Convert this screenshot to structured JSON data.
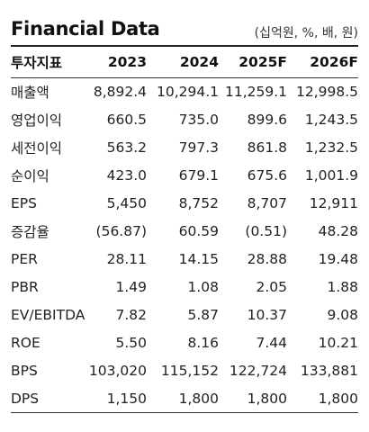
{
  "title": "Financial Data",
  "unit": "(십억원, %, 배, 원)",
  "columns": [
    "투자지표",
    "2023",
    "2024",
    "2025F",
    "2026F"
  ],
  "rows": [
    {
      "label": "매출액",
      "values": [
        "8,892.4",
        "10,294.1",
        "11,259.1",
        "12,998.5"
      ]
    },
    {
      "label": "영업이익",
      "values": [
        "660.5",
        "735.0",
        "899.6",
        "1,243.5"
      ]
    },
    {
      "label": "세전이익",
      "values": [
        "563.2",
        "797.3",
        "861.8",
        "1,232.5"
      ]
    },
    {
      "label": "순이익",
      "values": [
        "423.0",
        "679.1",
        "675.6",
        "1,001.9"
      ]
    },
    {
      "label": "EPS",
      "values": [
        "5,450",
        "8,752",
        "8,707",
        "12,911"
      ]
    },
    {
      "label": "증감율",
      "values": [
        "(56.87)",
        "60.59",
        "(0.51)",
        "48.28"
      ]
    },
    {
      "label": "PER",
      "values": [
        "28.11",
        "14.15",
        "28.88",
        "19.48"
      ]
    },
    {
      "label": "PBR",
      "values": [
        "1.49",
        "1.08",
        "2.05",
        "1.88"
      ]
    },
    {
      "label": "EV/EBITDA",
      "values": [
        "7.82",
        "5.87",
        "10.37",
        "9.08"
      ]
    },
    {
      "label": "ROE",
      "values": [
        "5.50",
        "8.16",
        "7.44",
        "10.21"
      ]
    },
    {
      "label": "BPS",
      "values": [
        "103,020",
        "115,152",
        "122,724",
        "133,881"
      ]
    },
    {
      "label": "DPS",
      "values": [
        "1,150",
        "1,800",
        "1,800",
        "1,800"
      ]
    }
  ]
}
